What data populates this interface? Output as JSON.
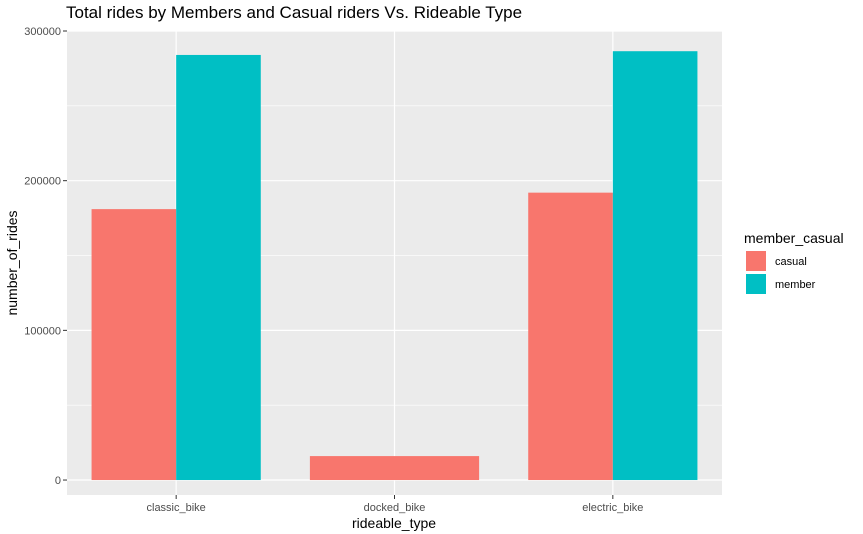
{
  "chart_data": {
    "type": "bar",
    "title": "Total rides by Members and Casual riders Vs. Rideable Type",
    "xlabel": "rideable_type",
    "ylabel": "number_of_rides",
    "categories": [
      "classic_bike",
      "docked_bike",
      "electric_bike"
    ],
    "series": [
      {
        "name": "casual",
        "values": [
          181000,
          null,
          192000
        ],
        "color": "#F8766D"
      },
      {
        "name": "member",
        "values": [
          284000,
          null,
          286500
        ],
        "color": "#00BFC4"
      }
    ],
    "docked_single": {
      "category": "docked_bike",
      "series": "casual",
      "value": 16000
    },
    "ylim": [
      -10000,
      300000
    ],
    "yticks": [
      0,
      100000,
      200000,
      300000
    ],
    "ytick_labels": [
      "0",
      "100000",
      "200000",
      "300000"
    ],
    "legend": {
      "title": "member_casual",
      "entries": [
        "casual",
        "member"
      ],
      "placement": "right"
    },
    "grid": true,
    "panel_background": "#EBEBEB"
  }
}
